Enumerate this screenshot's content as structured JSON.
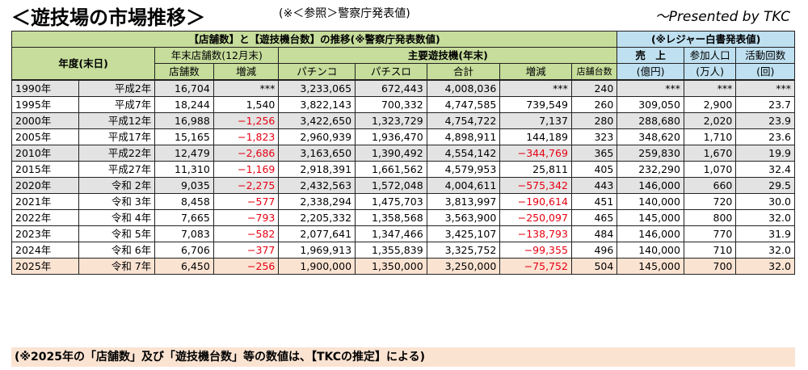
{
  "header": {
    "title": "＜遊技場の市場推移＞",
    "note": "(※＜参照＞警察庁発表値)",
    "presented": "〜Presented by TKC"
  },
  "table": {
    "group_police": "【店舗数】と【遊技機台数】の推移(※警察庁発表数値)",
    "group_leisure": "(※レジャー白書発表値)",
    "col_year": "年度(末日)",
    "col_store_group": "年末店舗数(12月末)",
    "col_machine_group": "主要遊技機(年末)",
    "col_stores": "店舗数",
    "col_change": "増減",
    "col_pachinko": "パチンコ",
    "col_pachislo": "パチスロ",
    "col_total": "合計",
    "col_machine_change": "増減",
    "col_per_store": "店舗台数",
    "col_sales_1": "売　上",
    "col_sales_2": "(億円)",
    "col_pop_1": "参加人口",
    "col_pop_2": "(万人)",
    "col_act_1": "活動回数",
    "col_act_2": "(回)",
    "rows": [
      {
        "year": "1990年",
        "era": "平成2年",
        "stores": "16,704",
        "change": "***",
        "pachinko": "3,233,065",
        "pachislo": "672,443",
        "total": "4,008,036",
        "mchange": "***",
        "per_store": "240",
        "sales": "***",
        "pop": "***",
        "act": "***"
      },
      {
        "year": "1995年",
        "era": "平成7年",
        "stores": "18,244",
        "change": "1,540",
        "pachinko": "3,822,143",
        "pachislo": "700,332",
        "total": "4,747,585",
        "mchange": "739,549",
        "per_store": "260",
        "sales": "309,050",
        "pop": "2,900",
        "act": "23.7"
      },
      {
        "year": "2000年",
        "era": "平成12年",
        "stores": "16,988",
        "change": "−1,256",
        "pachinko": "3,422,650",
        "pachislo": "1,323,729",
        "total": "4,754,722",
        "mchange": "7,137",
        "per_store": "280",
        "sales": "288,680",
        "pop": "2,020",
        "act": "23.9"
      },
      {
        "year": "2005年",
        "era": "平成17年",
        "stores": "15,165",
        "change": "−1,823",
        "pachinko": "2,960,939",
        "pachislo": "1,936,470",
        "total": "4,898,911",
        "mchange": "144,189",
        "per_store": "323",
        "sales": "348,620",
        "pop": "1,710",
        "act": "23.6"
      },
      {
        "year": "2010年",
        "era": "平成22年",
        "stores": "12,479",
        "change": "−2,686",
        "pachinko": "3,163,650",
        "pachislo": "1,390,492",
        "total": "4,554,142",
        "mchange": "−344,769",
        "per_store": "365",
        "sales": "259,830",
        "pop": "1,670",
        "act": "19.9"
      },
      {
        "year": "2015年",
        "era": "平成27年",
        "stores": "11,310",
        "change": "−1,169",
        "pachinko": "2,918,391",
        "pachislo": "1,661,562",
        "total": "4,579,953",
        "mchange": "25,811",
        "per_store": "405",
        "sales": "232,290",
        "pop": "1,070",
        "act": "32.4"
      },
      {
        "year": "2020年",
        "era": "令和 2年",
        "stores": "9,035",
        "change": "−2,275",
        "pachinko": "2,432,563",
        "pachislo": "1,572,048",
        "total": "4,004,611",
        "mchange": "−575,342",
        "per_store": "443",
        "sales": "146,000",
        "pop": "660",
        "act": "29.5"
      },
      {
        "year": "2021年",
        "era": "令和 3年",
        "stores": "8,458",
        "change": "−577",
        "pachinko": "2,338,294",
        "pachislo": "1,475,703",
        "total": "3,813,997",
        "mchange": "−190,614",
        "per_store": "451",
        "sales": "140,000",
        "pop": "720",
        "act": "30.0"
      },
      {
        "year": "2022年",
        "era": "令和 4年",
        "stores": "7,665",
        "change": "−793",
        "pachinko": "2,205,332",
        "pachislo": "1,358,568",
        "total": "3,563,900",
        "mchange": "−250,097",
        "per_store": "465",
        "sales": "145,000",
        "pop": "800",
        "act": "32.0"
      },
      {
        "year": "2023年",
        "era": "令和 5年",
        "stores": "7,083",
        "change": "−582",
        "pachinko": "2,077,641",
        "pachislo": "1,347,466",
        "total": "3,425,107",
        "mchange": "−138,793",
        "per_store": "484",
        "sales": "146,000",
        "pop": "770",
        "act": "31.9"
      },
      {
        "year": "2024年",
        "era": "令和 6年",
        "stores": "6,706",
        "change": "−377",
        "pachinko": "1,969,913",
        "pachislo": "1,355,839",
        "total": "3,325,752",
        "mchange": "−99,355",
        "per_store": "496",
        "sales": "140,000",
        "pop": "710",
        "act": "32.0"
      },
      {
        "year": "2025年",
        "era": "令和 7年",
        "stores": "6,450",
        "change": "−256",
        "pachinko": "1,900,000",
        "pachislo": "1,350,000",
        "total": "3,250,000",
        "mchange": "−75,752",
        "per_store": "504",
        "sales": "145,000",
        "pop": "700",
        "act": "32.0"
      }
    ],
    "row_shading": [
      "gray",
      "white",
      "gray",
      "white",
      "gray",
      "white",
      "gray",
      "white",
      "white",
      "white",
      "white",
      "peach"
    ]
  },
  "footnote": "(※2025年の「店舗数」及び「遊技機台数」等の数値は、【TKCの推定】による)",
  "colors": {
    "header_green": "#c6dd9b",
    "header_blue": "#bfe0f0",
    "row_gray": "#e3e3e3",
    "row_peach": "#fbe3d2",
    "negative_red": "#e60012"
  }
}
